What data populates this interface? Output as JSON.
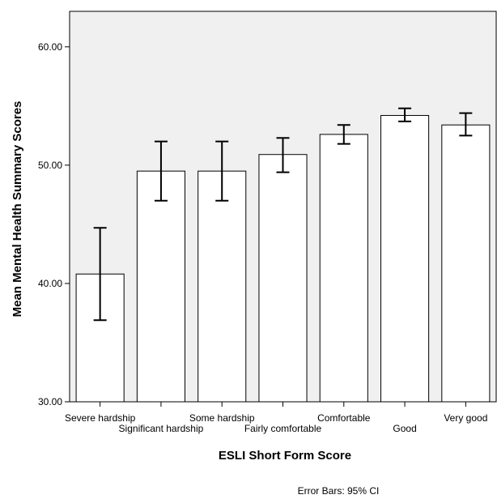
{
  "chart_data": {
    "type": "bar",
    "title": "",
    "xlabel": "ESLI Short Form Score",
    "ylabel": "Mean Mental Health Summary Scores",
    "ylim": [
      30,
      63
    ],
    "yticks": [
      30,
      40,
      50,
      60
    ],
    "ytick_labels": [
      "30.00",
      "40.00",
      "50.00",
      "60.00"
    ],
    "grid": false,
    "legend": "none",
    "plot_background": "#f0f0f0",
    "bar_fill": "#ffffff",
    "bar_stroke": "#000000",
    "categories": [
      "Severe hardship",
      "Significant hardship",
      "Some hardship",
      "Fairly comfortable",
      "Comfortable",
      "Good",
      "Very good"
    ],
    "values": [
      40.8,
      49.5,
      49.5,
      50.9,
      52.6,
      54.2,
      53.4
    ],
    "error_low": [
      36.9,
      47.0,
      47.0,
      49.4,
      51.8,
      53.7,
      52.5
    ],
    "error_high": [
      44.7,
      52.0,
      52.0,
      52.3,
      53.4,
      54.8,
      54.4
    ],
    "footnote": "Error Bars: 95% CI"
  }
}
